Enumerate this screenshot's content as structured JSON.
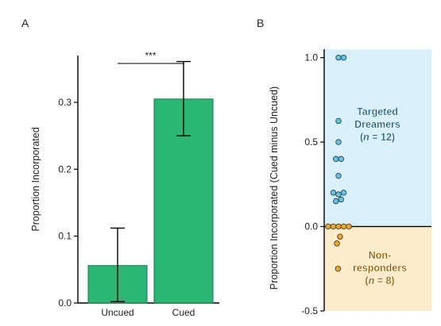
{
  "colors": {
    "bar": "#2ab673",
    "bar_stroke": "#1b7a4a",
    "targeted_bg": "#d9f1fb",
    "nonresp_bg": "#fdeccb",
    "targeted_dot": "#5cc6e8",
    "nonresp_dot": "#f2a81e",
    "targeted_text": "#1a5a78",
    "nonresp_text": "#8a5a00"
  },
  "chart_data": [
    {
      "panel": "A",
      "type": "bar",
      "categories": [
        "Uncued",
        "Cued"
      ],
      "values": [
        0.056,
        0.305
      ],
      "error_low": [
        0.002,
        0.25
      ],
      "error_high": [
        0.112,
        0.361
      ],
      "ylabel": "Proportion Incorporated",
      "ylim": [
        0,
        0.37
      ],
      "yticks": [
        0.0,
        0.1,
        0.2,
        0.3
      ],
      "ytick_labels": [
        "0.0",
        "0.1",
        "0.2",
        "0.3"
      ],
      "significance": "***"
    },
    {
      "panel": "B",
      "type": "scatter",
      "ylabel": "Proportion Incorporated (Cued minus Uncued)",
      "ylim": [
        -0.5,
        1.05
      ],
      "yticks": [
        -0.5,
        0.0,
        0.5,
        1.0
      ],
      "ytick_labels": [
        "-0.5",
        "0.0",
        "0.5",
        "1.0"
      ],
      "groups": [
        {
          "label_line1": "Targeted",
          "label_line2": "Dreamers",
          "label_line3_n": "n",
          "label_line3_rest": " = 12)",
          "points": [
            {
              "x": 0.0,
              "y": 1.0
            },
            {
              "x": 1.0,
              "y": 1.0
            },
            {
              "x": 0.0,
              "y": 0.625
            },
            {
              "x": 0.0,
              "y": 0.5
            },
            {
              "x": -0.5,
              "y": 0.4
            },
            {
              "x": 0.5,
              "y": 0.4
            },
            {
              "x": 0.0,
              "y": 0.3
            },
            {
              "x": -1.0,
              "y": 0.2
            },
            {
              "x": 0.0,
              "y": 0.19
            },
            {
              "x": 1.0,
              "y": 0.2
            },
            {
              "x": -0.5,
              "y": 0.15
            },
            {
              "x": 0.5,
              "y": 0.16
            }
          ]
        },
        {
          "label_line1": "Non-",
          "label_line2": "responders",
          "label_line3_n": "n",
          "label_line3_rest": " = 8)",
          "points": [
            {
              "x": -2.0,
              "y": 0.0
            },
            {
              "x": -1.0,
              "y": 0.0
            },
            {
              "x": 0.0,
              "y": 0.0
            },
            {
              "x": 1.0,
              "y": 0.0
            },
            {
              "x": 2.0,
              "y": 0.0
            },
            {
              "x": 0.3,
              "y": -0.06
            },
            {
              "x": -0.3,
              "y": -0.1
            },
            {
              "x": -0.1,
              "y": -0.25
            }
          ]
        }
      ]
    }
  ]
}
